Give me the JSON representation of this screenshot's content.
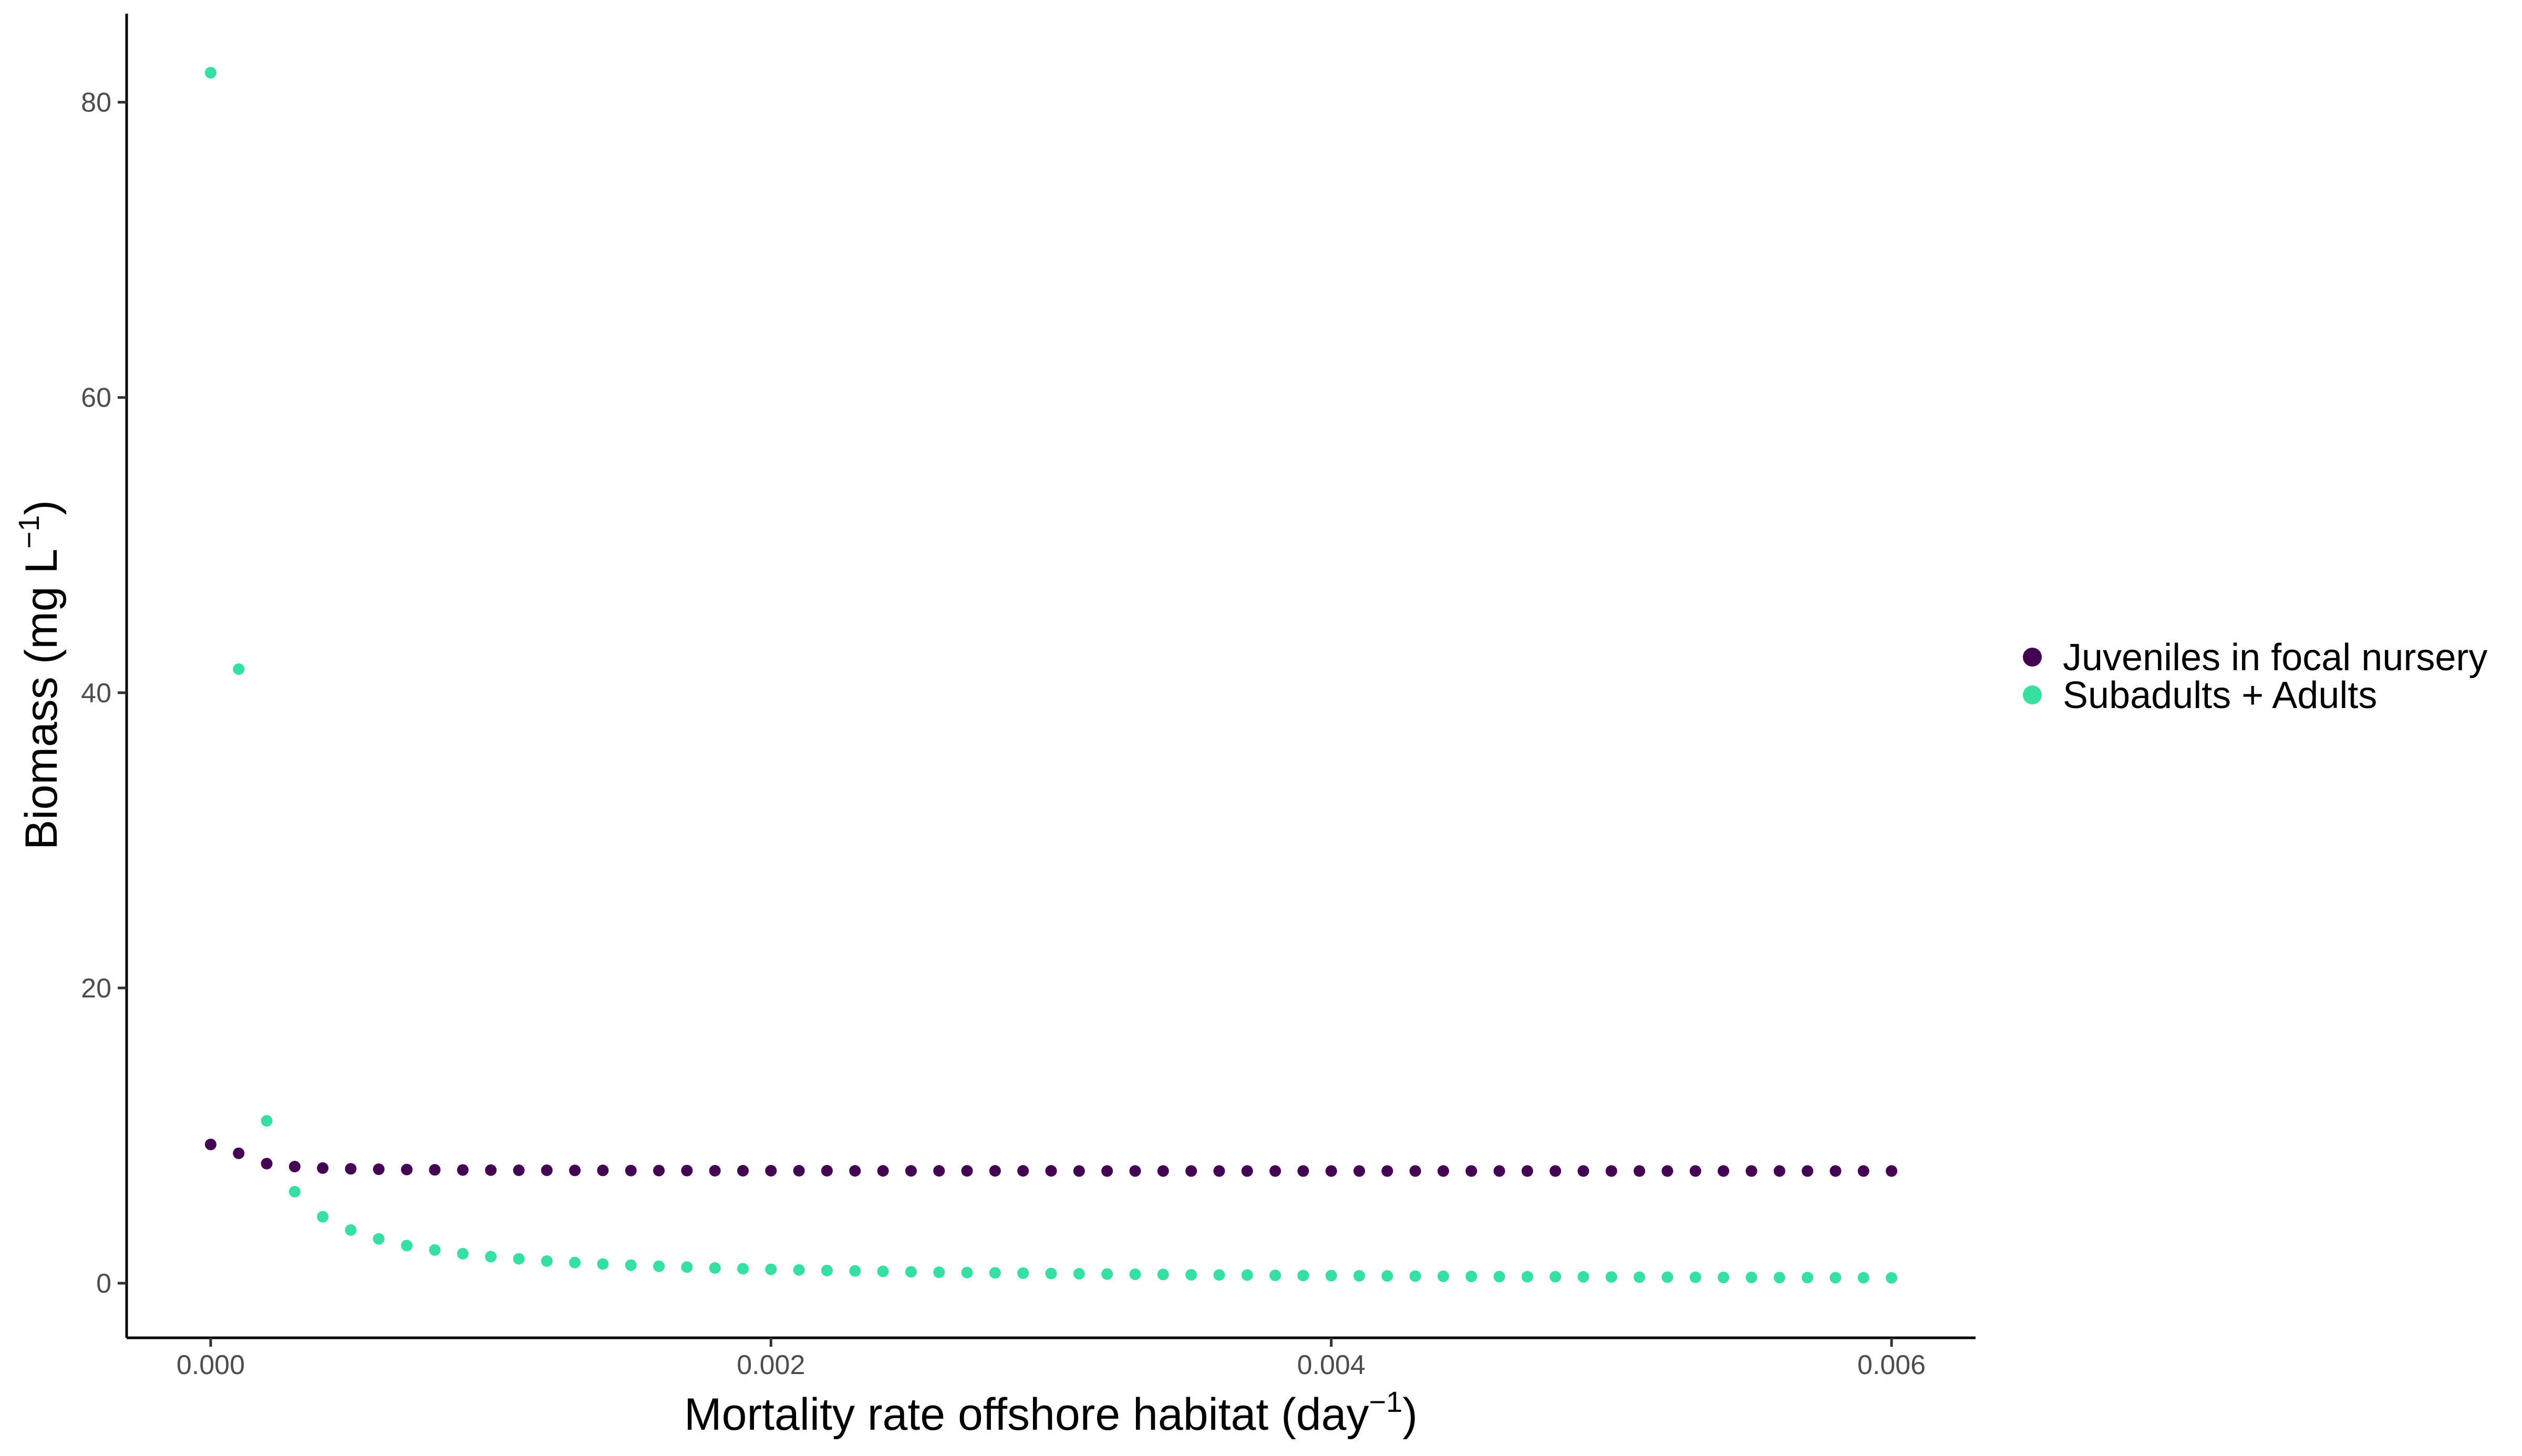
{
  "chart_data": {
    "type": "scatter",
    "xlabel": "Mortality rate offshore habitat (day",
    "xlabel_sup": "−1",
    "xlabel_end": ")",
    "ylabel": "Biomass (mg L",
    "ylabel_sup": "−1",
    "ylabel_end": ")",
    "xlim": [
      -0.0003,
      0.0063
    ],
    "ylim": [
      -3.7,
      86
    ],
    "x_ticks": [
      0,
      0.002,
      0.004,
      0.006
    ],
    "x_tick_labels": [
      "0.000",
      "0.002",
      "0.004",
      "0.006"
    ],
    "y_ticks": [
      0,
      20,
      40,
      60,
      80
    ],
    "y_tick_labels": [
      "0",
      "20",
      "40",
      "60",
      "80"
    ],
    "grid": false,
    "legend_position": "right",
    "x": [
      0.0,
      0.0001,
      0.0002,
      0.0003,
      0.0004,
      0.0005,
      0.0006,
      0.0007,
      0.0008,
      0.0009,
      0.001,
      0.0011,
      0.0012,
      0.0013,
      0.0014,
      0.0015,
      0.0016,
      0.0017,
      0.0018,
      0.0019,
      0.002,
      0.0021,
      0.0022,
      0.0023,
      0.0024,
      0.0025,
      0.0026,
      0.0027,
      0.0028,
      0.0029,
      0.003,
      0.0031,
      0.0032,
      0.0033,
      0.0034,
      0.0035,
      0.0036,
      0.0037,
      0.0038,
      0.0039,
      0.004,
      0.0041,
      0.0042,
      0.0043,
      0.0044,
      0.0045,
      0.0046,
      0.0047,
      0.0048,
      0.0049,
      0.005,
      0.0051,
      0.0052,
      0.0053,
      0.0054,
      0.0055,
      0.0056,
      0.0057,
      0.0058,
      0.0059,
      0.006
    ],
    "series": [
      {
        "name": "Juveniles in focal nursery",
        "color": "#440154",
        "values": [
          9.4,
          8.8,
          8.1,
          7.9,
          7.8,
          7.75,
          7.72,
          7.7,
          7.68,
          7.67,
          7.66,
          7.65,
          7.65,
          7.64,
          7.64,
          7.63,
          7.63,
          7.63,
          7.62,
          7.62,
          7.62,
          7.62,
          7.62,
          7.61,
          7.61,
          7.61,
          7.61,
          7.61,
          7.61,
          7.61,
          7.61,
          7.6,
          7.6,
          7.6,
          7.6,
          7.6,
          7.6,
          7.6,
          7.6,
          7.6,
          7.6,
          7.6,
          7.6,
          7.6,
          7.6,
          7.6,
          7.6,
          7.6,
          7.6,
          7.6,
          7.6,
          7.6,
          7.6,
          7.6,
          7.6,
          7.6,
          7.6,
          7.6,
          7.6,
          7.6,
          7.6
        ]
      },
      {
        "name": "Subadults + Adults",
        "color": "#35e0a2",
        "values": [
          82.0,
          41.6,
          11.0,
          6.2,
          4.5,
          3.6,
          3.0,
          2.55,
          2.25,
          2.0,
          1.8,
          1.65,
          1.5,
          1.4,
          1.3,
          1.22,
          1.15,
          1.09,
          1.03,
          0.98,
          0.94,
          0.9,
          0.86,
          0.83,
          0.8,
          0.77,
          0.74,
          0.72,
          0.7,
          0.68,
          0.66,
          0.64,
          0.62,
          0.6,
          0.59,
          0.57,
          0.56,
          0.55,
          0.53,
          0.52,
          0.51,
          0.5,
          0.49,
          0.48,
          0.47,
          0.46,
          0.45,
          0.44,
          0.44,
          0.43,
          0.42,
          0.41,
          0.41,
          0.4,
          0.39,
          0.39,
          0.38,
          0.38,
          0.37,
          0.37,
          0.36
        ]
      }
    ]
  }
}
